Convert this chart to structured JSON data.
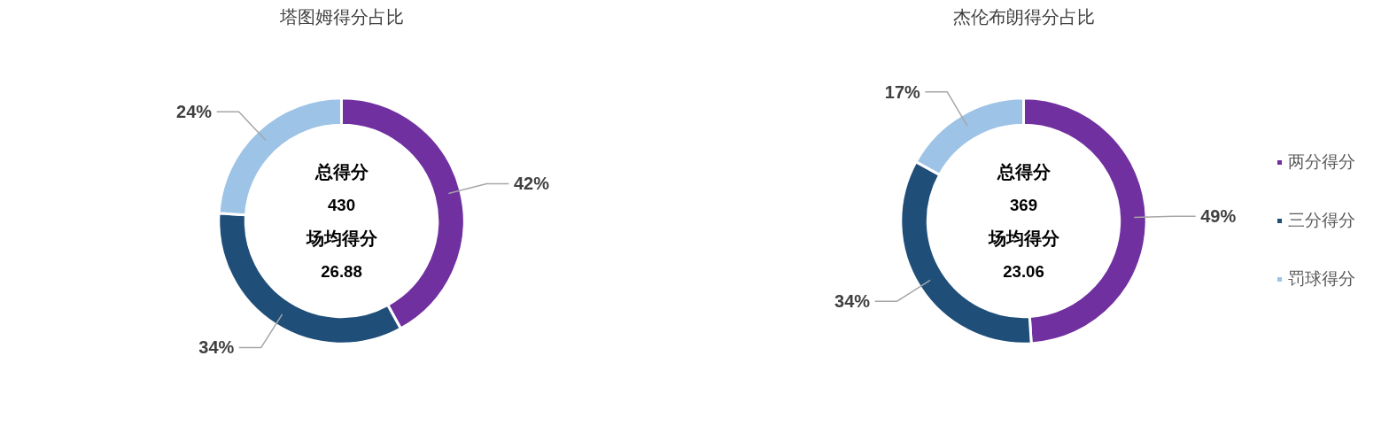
{
  "chart_data": [
    {
      "type": "donut",
      "title": "塔图姆得分占比",
      "categories": [
        null,
        null,
        null
      ],
      "values": [
        42,
        34,
        24
      ],
      "colors": [
        "#7030a0",
        "#1f4e79",
        "#9dc3e6"
      ],
      "value_labels": [
        "42%",
        "34%",
        "24%"
      ],
      "annotations": [
        "总得分",
        "430",
        "场均得分",
        "26.88"
      ],
      "legend": false
    },
    {
      "type": "donut",
      "title": "杰伦布朗得分占比",
      "categories": [
        "两分得分",
        "三分得分",
        "罚球得分"
      ],
      "values": [
        49,
        34,
        17
      ],
      "colors": [
        "#7030a0",
        "#1f4e79",
        "#9dc3e6"
      ],
      "value_labels": [
        "49%",
        "34%",
        "17%"
      ],
      "annotations": [
        "总得分",
        "369",
        "场均得分",
        "23.06"
      ],
      "legend": "right"
    }
  ]
}
